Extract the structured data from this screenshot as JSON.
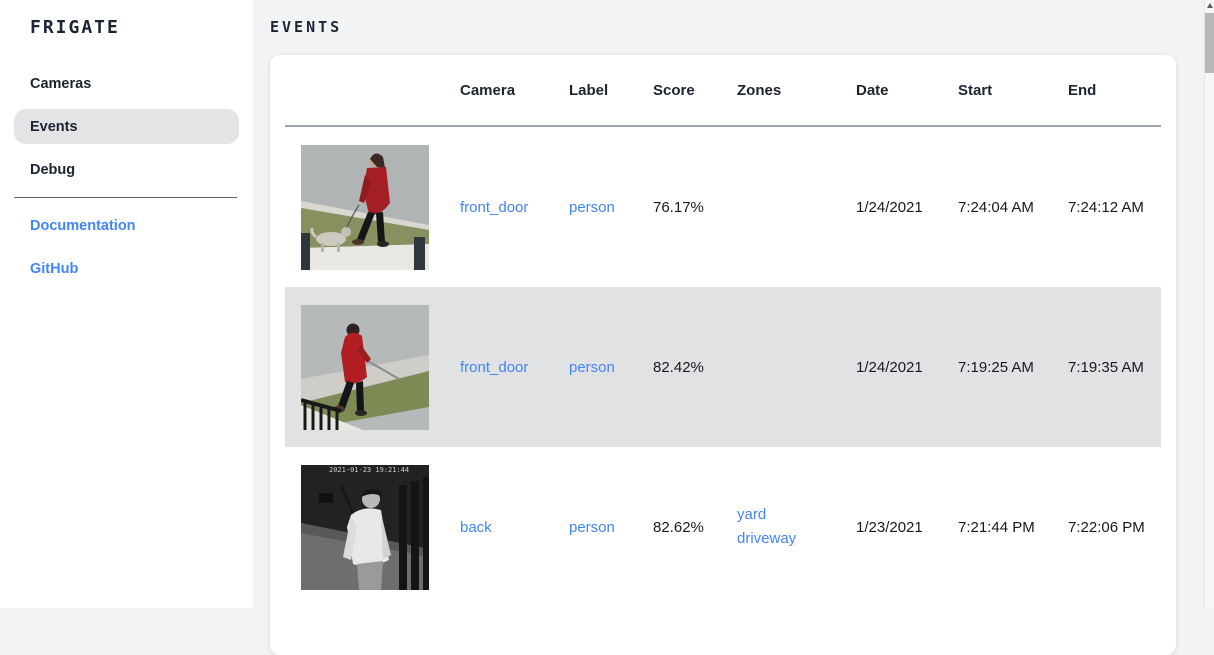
{
  "app": {
    "title": "FRIGATE"
  },
  "sidebar": {
    "items": [
      {
        "label": "Cameras",
        "selected": false
      },
      {
        "label": "Events",
        "selected": true
      },
      {
        "label": "Debug",
        "selected": false
      }
    ],
    "links": [
      {
        "label": "Documentation"
      },
      {
        "label": "GitHub"
      }
    ]
  },
  "page": {
    "title": "EVENTS"
  },
  "table": {
    "columns": [
      "Camera",
      "Label",
      "Score",
      "Zones",
      "Date",
      "Start",
      "End"
    ],
    "rows": [
      {
        "thumb": "front-door-day-person-red-coat-walking-dog",
        "camera": "front_door",
        "label": "person",
        "score": "76.17%",
        "zones": [],
        "date": "1/24/2021",
        "start": "7:24:04 AM",
        "end": "7:24:12 AM",
        "selected": false
      },
      {
        "thumb": "front-door-day-person-red-hoodie-walking-dog",
        "camera": "front_door",
        "label": "person",
        "score": "82.42%",
        "zones": [],
        "date": "1/24/2021",
        "start": "7:19:25 AM",
        "end": "7:19:35 AM",
        "selected": true
      },
      {
        "thumb": "back-night-ir-person-white-shirt",
        "camera": "back",
        "label": "person",
        "score": "82.62%",
        "zones": [
          "yard",
          "driveway"
        ],
        "date": "1/23/2021",
        "start": "7:21:44 PM",
        "end": "7:22:06 PM",
        "selected": false,
        "thumb_timestamp": "2021-01-23 19:21:44"
      }
    ]
  },
  "colors": {
    "accent_link": "#4285f4",
    "text_dark": "#1b2430",
    "selected_row_bg": "#e1e2e4",
    "selected_nav_bg": "#e4e4e6",
    "main_bg": "#f2f3f5",
    "header_rule": "#9aa3b0"
  }
}
